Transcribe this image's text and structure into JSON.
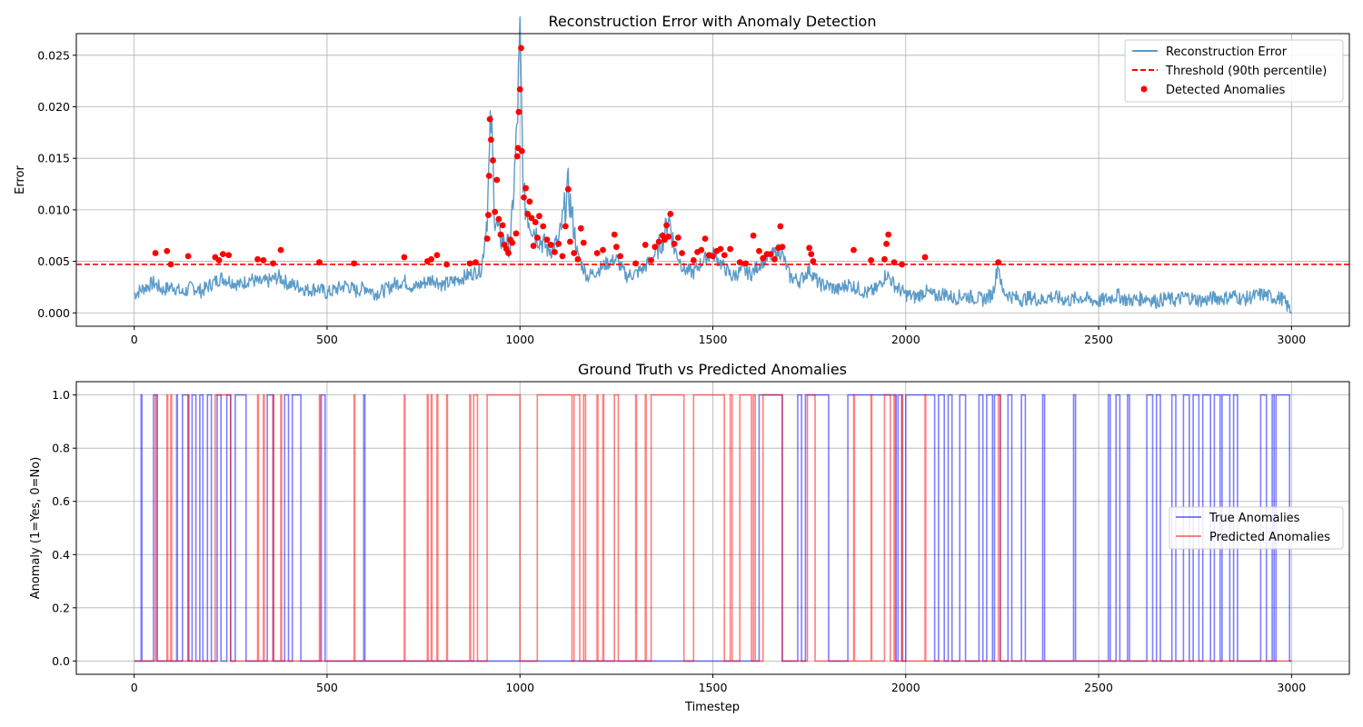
{
  "chart_data": [
    {
      "type": "line",
      "title": "Reconstruction Error with Anomaly Detection",
      "xlabel": "",
      "ylabel": "Error",
      "xlim": [
        -150,
        3150
      ],
      "ylim": [
        -0.0013,
        0.0271
      ],
      "xticks": [
        0,
        500,
        1000,
        1500,
        2000,
        2500,
        3000
      ],
      "xtick_labels": [
        "0",
        "500",
        "1000",
        "1500",
        "2000",
        "2500",
        "3000"
      ],
      "yticks": [
        0.0,
        0.005,
        0.01,
        0.015,
        0.02,
        0.025
      ],
      "ytick_labels": [
        "0.000",
        "0.005",
        "0.010",
        "0.015",
        "0.020",
        "0.025"
      ],
      "grid": true,
      "legend_position": "top-right",
      "threshold": {
        "name": "Threshold (90th percentile)",
        "value": 0.0047,
        "color": "#ff0000",
        "style": "dashed"
      },
      "series": [
        {
          "name": "Reconstruction Error",
          "color": "#5b9bc8",
          "note_points": "envelope of the error signal sampled every ~25 timesteps",
          "x": [
            0,
            25,
            50,
            75,
            100,
            125,
            150,
            175,
            200,
            225,
            250,
            275,
            300,
            325,
            350,
            375,
            400,
            425,
            450,
            475,
            500,
            525,
            550,
            575,
            600,
            625,
            650,
            675,
            700,
            725,
            750,
            775,
            800,
            825,
            850,
            875,
            900,
            915,
            925,
            935,
            950,
            975,
            990,
            1000,
            1010,
            1025,
            1050,
            1075,
            1100,
            1125,
            1150,
            1175,
            1200,
            1225,
            1250,
            1275,
            1300,
            1325,
            1350,
            1375,
            1385,
            1400,
            1425,
            1450,
            1475,
            1500,
            1525,
            1550,
            1575,
            1600,
            1625,
            1650,
            1675,
            1700,
            1725,
            1750,
            1775,
            1800,
            1825,
            1850,
            1875,
            1900,
            1925,
            1950,
            1975,
            2000,
            2025,
            2050,
            2075,
            2100,
            2125,
            2150,
            2175,
            2200,
            2225,
            2240,
            2250,
            2275,
            2300,
            2325,
            2350,
            2375,
            2400,
            2425,
            2450,
            2475,
            2500,
            2525,
            2550,
            2575,
            2600,
            2625,
            2650,
            2675,
            2700,
            2725,
            2750,
            2775,
            2800,
            2825,
            2850,
            2875,
            2900,
            2925,
            2950,
            2975,
            3000
          ],
          "y": [
            0.0018,
            0.0024,
            0.0029,
            0.0022,
            0.0026,
            0.0019,
            0.0025,
            0.0021,
            0.0028,
            0.0034,
            0.0031,
            0.0027,
            0.0033,
            0.0029,
            0.0031,
            0.0035,
            0.0028,
            0.0026,
            0.0022,
            0.0024,
            0.0019,
            0.0023,
            0.0027,
            0.0021,
            0.0025,
            0.0019,
            0.0022,
            0.0028,
            0.0031,
            0.0024,
            0.0029,
            0.0033,
            0.0027,
            0.003,
            0.0034,
            0.0038,
            0.0042,
            0.0095,
            0.0188,
            0.0092,
            0.0071,
            0.0064,
            0.016,
            0.0257,
            0.011,
            0.0089,
            0.0072,
            0.0061,
            0.0068,
            0.012,
            0.0055,
            0.0035,
            0.0041,
            0.0048,
            0.0052,
            0.0036,
            0.0038,
            0.0045,
            0.0057,
            0.0075,
            0.0096,
            0.0063,
            0.0042,
            0.0039,
            0.0051,
            0.0058,
            0.0046,
            0.0035,
            0.0041,
            0.0038,
            0.0049,
            0.0055,
            0.0062,
            0.0035,
            0.0031,
            0.0042,
            0.0028,
            0.0026,
            0.0022,
            0.0028,
            0.0024,
            0.0019,
            0.0023,
            0.0038,
            0.0025,
            0.0018,
            0.0015,
            0.0021,
            0.0016,
            0.0019,
            0.0014,
            0.0017,
            0.0015,
            0.0013,
            0.0018,
            0.0048,
            0.0021,
            0.0016,
            0.0013,
            0.0015,
            0.0012,
            0.0016,
            0.0014,
            0.0012,
            0.0015,
            0.0013,
            0.0011,
            0.0014,
            0.0017,
            0.0012,
            0.0013,
            0.0015,
            0.0011,
            0.0014,
            0.0012,
            0.0016,
            0.0013,
            0.0012,
            0.0015,
            0.0014,
            0.0017,
            0.0013,
            0.0016,
            0.0018,
            0.0015,
            0.0014,
            0.0001
          ]
        },
        {
          "name": "Detected Anomalies",
          "type": "scatter",
          "color": "#ff0000",
          "x": [
            55,
            85,
            95,
            140,
            210,
            220,
            230,
            245,
            320,
            335,
            360,
            380,
            480,
            570,
            700,
            760,
            770,
            785,
            810,
            870,
            885,
            915,
            918,
            920,
            922,
            925,
            930,
            935,
            940,
            945,
            950,
            955,
            960,
            965,
            970,
            975,
            980,
            990,
            993,
            995,
            997,
            1000,
            1003,
            1005,
            1010,
            1015,
            1020,
            1025,
            1030,
            1035,
            1040,
            1045,
            1050,
            1060,
            1070,
            1080,
            1090,
            1100,
            1110,
            1118,
            1125,
            1130,
            1140,
            1150,
            1158,
            1165,
            1200,
            1215,
            1245,
            1250,
            1260,
            1300,
            1325,
            1340,
            1350,
            1360,
            1370,
            1375,
            1380,
            1385,
            1390,
            1400,
            1410,
            1420,
            1450,
            1460,
            1470,
            1480,
            1490,
            1500,
            1510,
            1520,
            1530,
            1545,
            1570,
            1585,
            1605,
            1620,
            1630,
            1640,
            1650,
            1660,
            1670,
            1675,
            1680,
            1750,
            1755,
            1760,
            1865,
            1910,
            1945,
            1950,
            1955,
            1970,
            1990,
            2050,
            2240
          ],
          "y": [
            0.0058,
            0.006,
            0.0047,
            0.0055,
            0.0054,
            0.0051,
            0.0057,
            0.0056,
            0.0052,
            0.0051,
            0.0048,
            0.0061,
            0.0049,
            0.0048,
            0.0054,
            0.005,
            0.0052,
            0.0056,
            0.0047,
            0.0048,
            0.0049,
            0.0072,
            0.0095,
            0.0133,
            0.0188,
            0.0168,
            0.0148,
            0.0098,
            0.0129,
            0.0091,
            0.0076,
            0.0085,
            0.0066,
            0.0062,
            0.0058,
            0.0071,
            0.0068,
            0.0077,
            0.0152,
            0.016,
            0.0195,
            0.0217,
            0.0257,
            0.0157,
            0.0112,
            0.0121,
            0.0096,
            0.0108,
            0.0092,
            0.0065,
            0.0088,
            0.0073,
            0.0094,
            0.0084,
            0.0071,
            0.0066,
            0.0059,
            0.0067,
            0.0055,
            0.0084,
            0.012,
            0.0069,
            0.0058,
            0.0052,
            0.0082,
            0.0068,
            0.0058,
            0.0061,
            0.0076,
            0.0064,
            0.0055,
            0.0048,
            0.0066,
            0.0051,
            0.0064,
            0.0069,
            0.0075,
            0.0071,
            0.0085,
            0.0074,
            0.0096,
            0.0067,
            0.0073,
            0.0058,
            0.0051,
            0.0059,
            0.0061,
            0.0072,
            0.0056,
            0.0055,
            0.006,
            0.0062,
            0.0056,
            0.0062,
            0.0049,
            0.0048,
            0.0075,
            0.006,
            0.0053,
            0.0057,
            0.0057,
            0.0052,
            0.0063,
            0.0084,
            0.0064,
            0.0063,
            0.0057,
            0.005,
            0.0061,
            0.0051,
            0.0052,
            0.0067,
            0.0076,
            0.0049,
            0.0047,
            0.0054,
            0.0049
          ]
        }
      ]
    },
    {
      "type": "line",
      "title": "Ground Truth vs Predicted Anomalies",
      "xlabel": "Timestep",
      "ylabel": "Anomaly (1=Yes, 0=No)",
      "xlim": [
        -150,
        3150
      ],
      "ylim": [
        -0.05,
        1.05
      ],
      "xticks": [
        0,
        500,
        1000,
        1500,
        2000,
        2500,
        3000
      ],
      "xtick_labels": [
        "0",
        "500",
        "1000",
        "1500",
        "2000",
        "2500",
        "3000"
      ],
      "yticks": [
        0.0,
        0.2,
        0.4,
        0.6,
        0.8,
        1.0
      ],
      "ytick_labels": [
        "0.0",
        "0.2",
        "0.4",
        "0.6",
        "0.8",
        "1.0"
      ],
      "grid": true,
      "legend_position": "center-right",
      "series": [
        {
          "name": "True Anomalies",
          "color": "#0000ff",
          "opacity": 0.5,
          "step": true,
          "anomaly_intervals": [
            [
              18,
              20
            ],
            [
              50,
              60
            ],
            [
              110,
              112
            ],
            [
              125,
              140
            ],
            [
              150,
              160
            ],
            [
              170,
              178
            ],
            [
              190,
              200
            ],
            [
              215,
              225
            ],
            [
              240,
              250
            ],
            [
              262,
              290
            ],
            [
              345,
              360
            ],
            [
              390,
              400
            ],
            [
              410,
              432
            ],
            [
              485,
              495
            ],
            [
              595,
              598
            ],
            [
              1620,
              1680
            ],
            [
              1720,
              1730
            ],
            [
              1740,
              1800
            ],
            [
              1850,
              1975
            ],
            [
              1980,
              1990
            ],
            [
              2000,
              2075
            ],
            [
              2085,
              2100
            ],
            [
              2110,
              2120
            ],
            [
              2140,
              2155
            ],
            [
              2190,
              2200
            ],
            [
              2210,
              2225
            ],
            [
              2230,
              2245
            ],
            [
              2265,
              2275
            ],
            [
              2300,
              2310
            ],
            [
              2355,
              2360
            ],
            [
              2435,
              2440
            ],
            [
              2525,
              2530
            ],
            [
              2545,
              2555
            ],
            [
              2575,
              2580
            ],
            [
              2625,
              2640
            ],
            [
              2650,
              2660
            ],
            [
              2690,
              2700
            ],
            [
              2720,
              2735
            ],
            [
              2745,
              2760
            ],
            [
              2770,
              2790
            ],
            [
              2800,
              2815
            ],
            [
              2820,
              2840
            ],
            [
              2850,
              2860
            ],
            [
              2920,
              2935
            ],
            [
              2950,
              2955
            ],
            [
              2960,
              2995
            ]
          ]
        },
        {
          "name": "Predicted Anomalies",
          "color": "#ff0000",
          "opacity": 0.5,
          "step": true,
          "anomaly_intervals": [
            [
              55,
              57
            ],
            [
              85,
              87
            ],
            [
              95,
              97
            ],
            [
              140,
              142
            ],
            [
              210,
              250
            ],
            [
              320,
              322
            ],
            [
              335,
              337
            ],
            [
              360,
              362
            ],
            [
              380,
              382
            ],
            [
              480,
              482
            ],
            [
              570,
              572
            ],
            [
              700,
              702
            ],
            [
              760,
              762
            ],
            [
              770,
              772
            ],
            [
              785,
              787
            ],
            [
              810,
              812
            ],
            [
              870,
              872
            ],
            [
              880,
              890
            ],
            [
              915,
              1000
            ],
            [
              1045,
              1135
            ],
            [
              1140,
              1155
            ],
            [
              1165,
              1170
            ],
            [
              1200,
              1202
            ],
            [
              1215,
              1217
            ],
            [
              1245,
              1255
            ],
            [
              1300,
              1302
            ],
            [
              1325,
              1327
            ],
            [
              1340,
              1425
            ],
            [
              1450,
              1530
            ],
            [
              1545,
              1550
            ],
            [
              1570,
              1600
            ],
            [
              1605,
              1610
            ],
            [
              1630,
              1680
            ],
            [
              1745,
              1765
            ],
            [
              1865,
              1867
            ],
            [
              1910,
              1912
            ],
            [
              1945,
              1960
            ],
            [
              1970,
              1972
            ],
            [
              1990,
              1992
            ],
            [
              2050,
              2052
            ],
            [
              2240,
              2245
            ]
          ]
        }
      ]
    }
  ]
}
